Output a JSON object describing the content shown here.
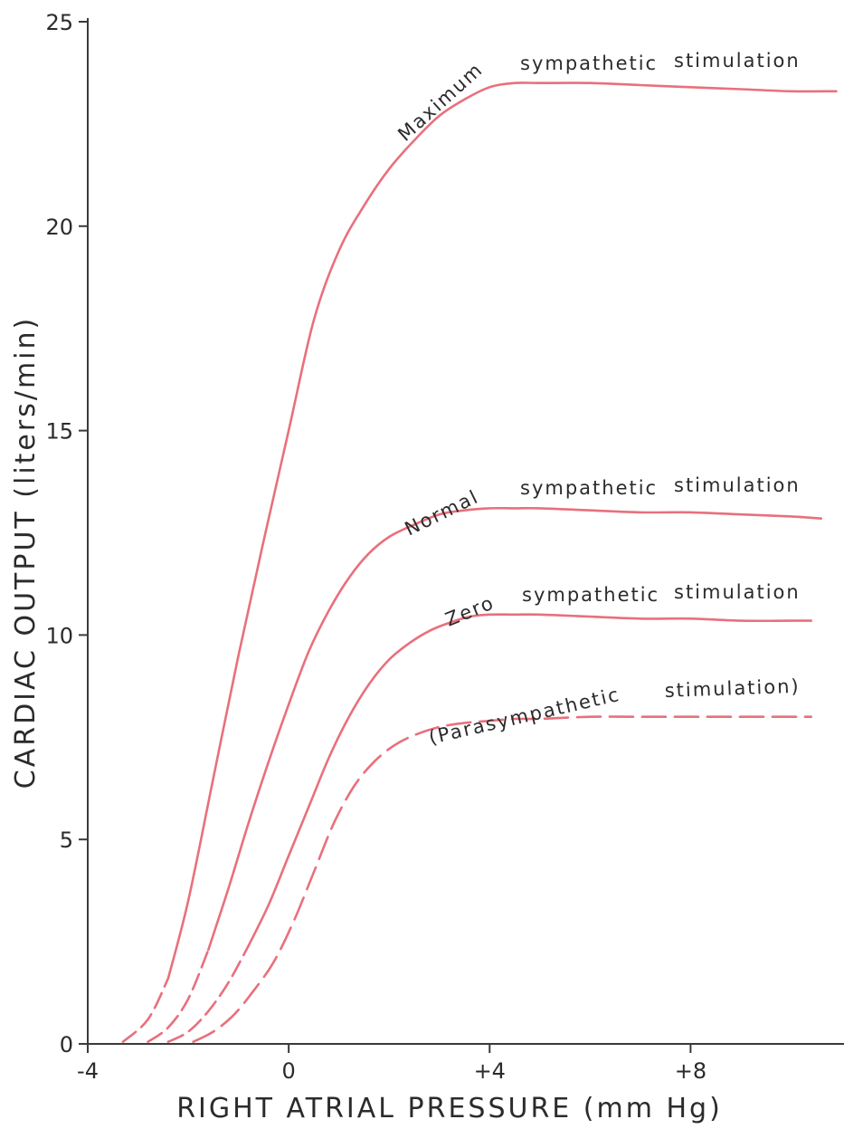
{
  "chart_data": {
    "type": "line",
    "xlabel": "RIGHT ATRIAL PRESSURE (mm Hg)",
    "ylabel": "CARDIAC OUTPUT (liters/min)",
    "xlim": [
      -4,
      11
    ],
    "ylim": [
      0,
      25
    ],
    "xticks": [
      -4,
      0,
      4,
      8
    ],
    "xtick_labels": [
      "-4",
      "0",
      "+4",
      "+8"
    ],
    "yticks": [
      0,
      5,
      10,
      15,
      20,
      25
    ],
    "ytick_labels": [
      "0",
      "5",
      "10",
      "15",
      "20",
      "25"
    ],
    "grid": false,
    "legend": "none",
    "line_color": "#e8707c",
    "series": [
      {
        "name": "Maximum sympathetic stimulation",
        "label_words": [
          "Maximum",
          "sympathetic",
          "stimulation"
        ],
        "style": "solid",
        "dashed_tail_end_x": -2.4,
        "x": [
          -3.3,
          -2.8,
          -2.4,
          -2.0,
          -1.5,
          -1.0,
          -0.5,
          0.0,
          0.5,
          1.0,
          1.5,
          2.0,
          2.5,
          3.0,
          3.5,
          4.0,
          4.5,
          5.0,
          6.0,
          7.0,
          8.0,
          9.0,
          10.0,
          10.9
        ],
        "y": [
          0.05,
          0.6,
          1.6,
          3.5,
          6.5,
          9.5,
          12.3,
          15.0,
          17.7,
          19.4,
          20.5,
          21.4,
          22.1,
          22.7,
          23.1,
          23.4,
          23.5,
          23.5,
          23.5,
          23.45,
          23.4,
          23.35,
          23.3,
          23.3
        ]
      },
      {
        "name": "Normal sympathetic stimulation",
        "label_words": [
          "Normal",
          "sympathetic",
          "stimulation"
        ],
        "style": "solid",
        "dashed_tail_end_x": -1.6,
        "x": [
          -2.8,
          -2.4,
          -2.0,
          -1.6,
          -1.2,
          -0.8,
          -0.4,
          0.0,
          0.4,
          0.8,
          1.2,
          1.6,
          2.0,
          2.5,
          3.0,
          3.5,
          4.0,
          4.5,
          5.0,
          6.0,
          7.0,
          8.0,
          9.0,
          10.0,
          10.6
        ],
        "y": [
          0.05,
          0.4,
          1.1,
          2.3,
          3.8,
          5.4,
          6.9,
          8.3,
          9.6,
          10.6,
          11.4,
          12.0,
          12.4,
          12.7,
          12.95,
          13.05,
          13.1,
          13.1,
          13.1,
          13.05,
          13.0,
          13.0,
          12.95,
          12.9,
          12.85
        ]
      },
      {
        "name": "Zero sympathetic stimulation",
        "label_words": [
          "Zero",
          "sympathetic",
          "stimulation"
        ],
        "style": "solid",
        "dashed_tail_end_x": -0.8,
        "x": [
          -2.4,
          -2.0,
          -1.6,
          -1.2,
          -0.8,
          -0.4,
          0.0,
          0.4,
          0.8,
          1.2,
          1.6,
          2.0,
          2.4,
          2.8,
          3.2,
          3.6,
          4.0,
          4.5,
          5.0,
          6.0,
          7.0,
          8.0,
          9.0,
          10.0,
          10.4
        ],
        "y": [
          0.05,
          0.3,
          0.8,
          1.5,
          2.4,
          3.4,
          4.6,
          5.8,
          7.0,
          8.0,
          8.8,
          9.4,
          9.8,
          10.1,
          10.3,
          10.45,
          10.5,
          10.5,
          10.5,
          10.45,
          10.4,
          10.4,
          10.35,
          10.35,
          10.35
        ]
      },
      {
        "name": "Parasympathetic stimulation",
        "label_words": [
          "(Parasympathetic",
          "stimulation)"
        ],
        "style": "dashed",
        "x": [
          -1.9,
          -1.5,
          -1.1,
          -0.7,
          -0.3,
          0.1,
          0.5,
          0.9,
          1.3,
          1.7,
          2.1,
          2.5,
          3.0,
          3.5,
          4.0,
          4.5,
          5.0,
          6.0,
          7.0,
          8.0,
          9.0,
          10.0,
          10.4
        ],
        "y": [
          0.05,
          0.3,
          0.7,
          1.3,
          2.0,
          3.0,
          4.2,
          5.4,
          6.3,
          6.9,
          7.3,
          7.55,
          7.75,
          7.85,
          7.9,
          7.95,
          7.95,
          8.0,
          8.0,
          8.0,
          8.0,
          8.0,
          8.0
        ]
      }
    ]
  }
}
